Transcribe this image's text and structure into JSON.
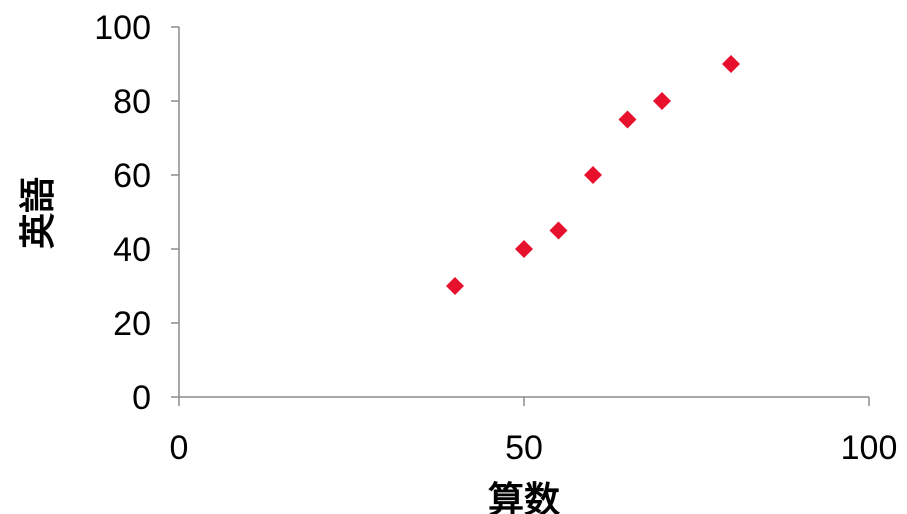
{
  "chart_data": {
    "type": "scatter",
    "title": "",
    "xlabel": "算数",
    "ylabel": "英語",
    "xlim": [
      0,
      100
    ],
    "ylim": [
      0,
      100
    ],
    "xticks": [
      0,
      50,
      100
    ],
    "yticks": [
      0,
      20,
      40,
      60,
      80,
      100
    ],
    "grid": false,
    "legend": "none",
    "marker": "diamond",
    "series": [
      {
        "color": "#e8112d",
        "x": [
          40,
          50,
          55,
          60,
          65,
          70,
          80
        ],
        "y": [
          30,
          40,
          45,
          60,
          75,
          80,
          90
        ]
      }
    ]
  }
}
